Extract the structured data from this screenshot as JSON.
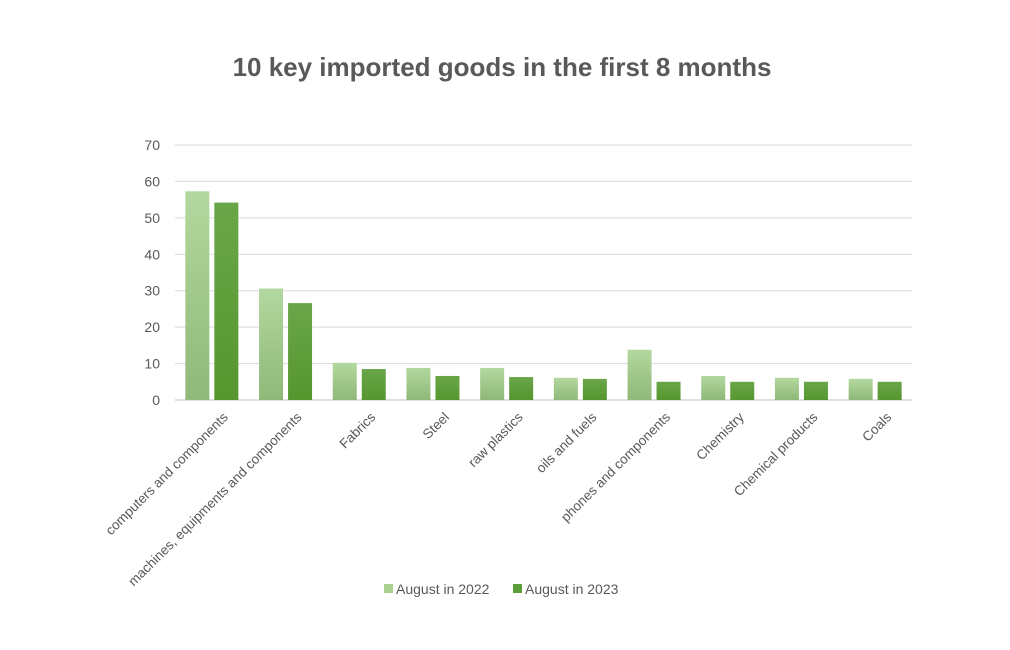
{
  "chart_data": {
    "type": "bar",
    "title": "10 key imported goods in the first 8 months",
    "xlabel": "",
    "ylabel": "",
    "ylim": [
      0,
      70
    ],
    "yticks": [
      0,
      10,
      20,
      30,
      40,
      50,
      60,
      70
    ],
    "grid": true,
    "legend_position": "bottom",
    "categories": [
      "computers and components",
      "machines, equipments and components",
      "Fabrics",
      "Steel",
      "raw plastics",
      "oils and fuels",
      "phones and components",
      "Chemistry",
      "Chemical products",
      "Coals"
    ],
    "series": [
      {
        "name": "August in 2022",
        "color": "#a9d08e",
        "values": [
          57.3,
          30.6,
          10.2,
          8.8,
          8.8,
          6.1,
          13.8,
          6.6,
          6.1,
          5.8
        ]
      },
      {
        "name": "August in 2023",
        "color": "#5e9e3a",
        "values": [
          54.2,
          26.6,
          8.5,
          6.6,
          6.3,
          5.8,
          5.0,
          5.0,
          5.0,
          5.0
        ]
      }
    ]
  }
}
